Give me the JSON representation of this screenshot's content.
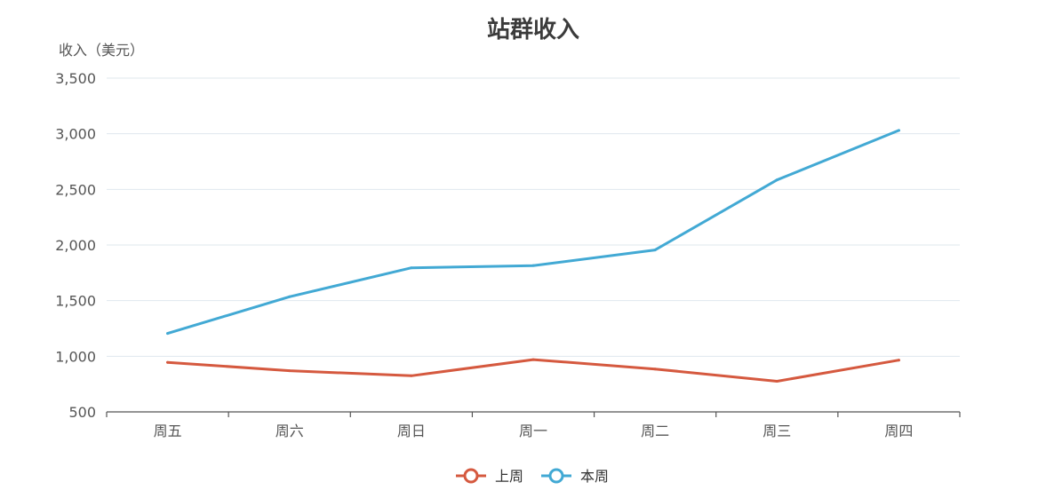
{
  "chart_data": {
    "type": "line",
    "title": "站群收入",
    "ylabel": "收入（美元）",
    "xlabel": "",
    "categories": [
      "周五",
      "周六",
      "周日",
      "周一",
      "周二",
      "周三",
      "周四"
    ],
    "ylim": [
      500,
      3500
    ],
    "yticks": [
      500,
      1000,
      1500,
      2000,
      2500,
      3000,
      3500
    ],
    "ytick_labels": [
      "500",
      "1,000",
      "1,500",
      "2,000",
      "2,500",
      "3,000",
      "3,500"
    ],
    "grid": true,
    "legend_position": "bottom-center",
    "series": [
      {
        "name": "上周",
        "color": "#d5593f",
        "values": [
          945,
          870,
          825,
          970,
          885,
          775,
          965
        ]
      },
      {
        "name": "本周",
        "color": "#42a9d4",
        "values": [
          1205,
          1535,
          1795,
          1815,
          1955,
          2585,
          3030
        ]
      }
    ]
  }
}
